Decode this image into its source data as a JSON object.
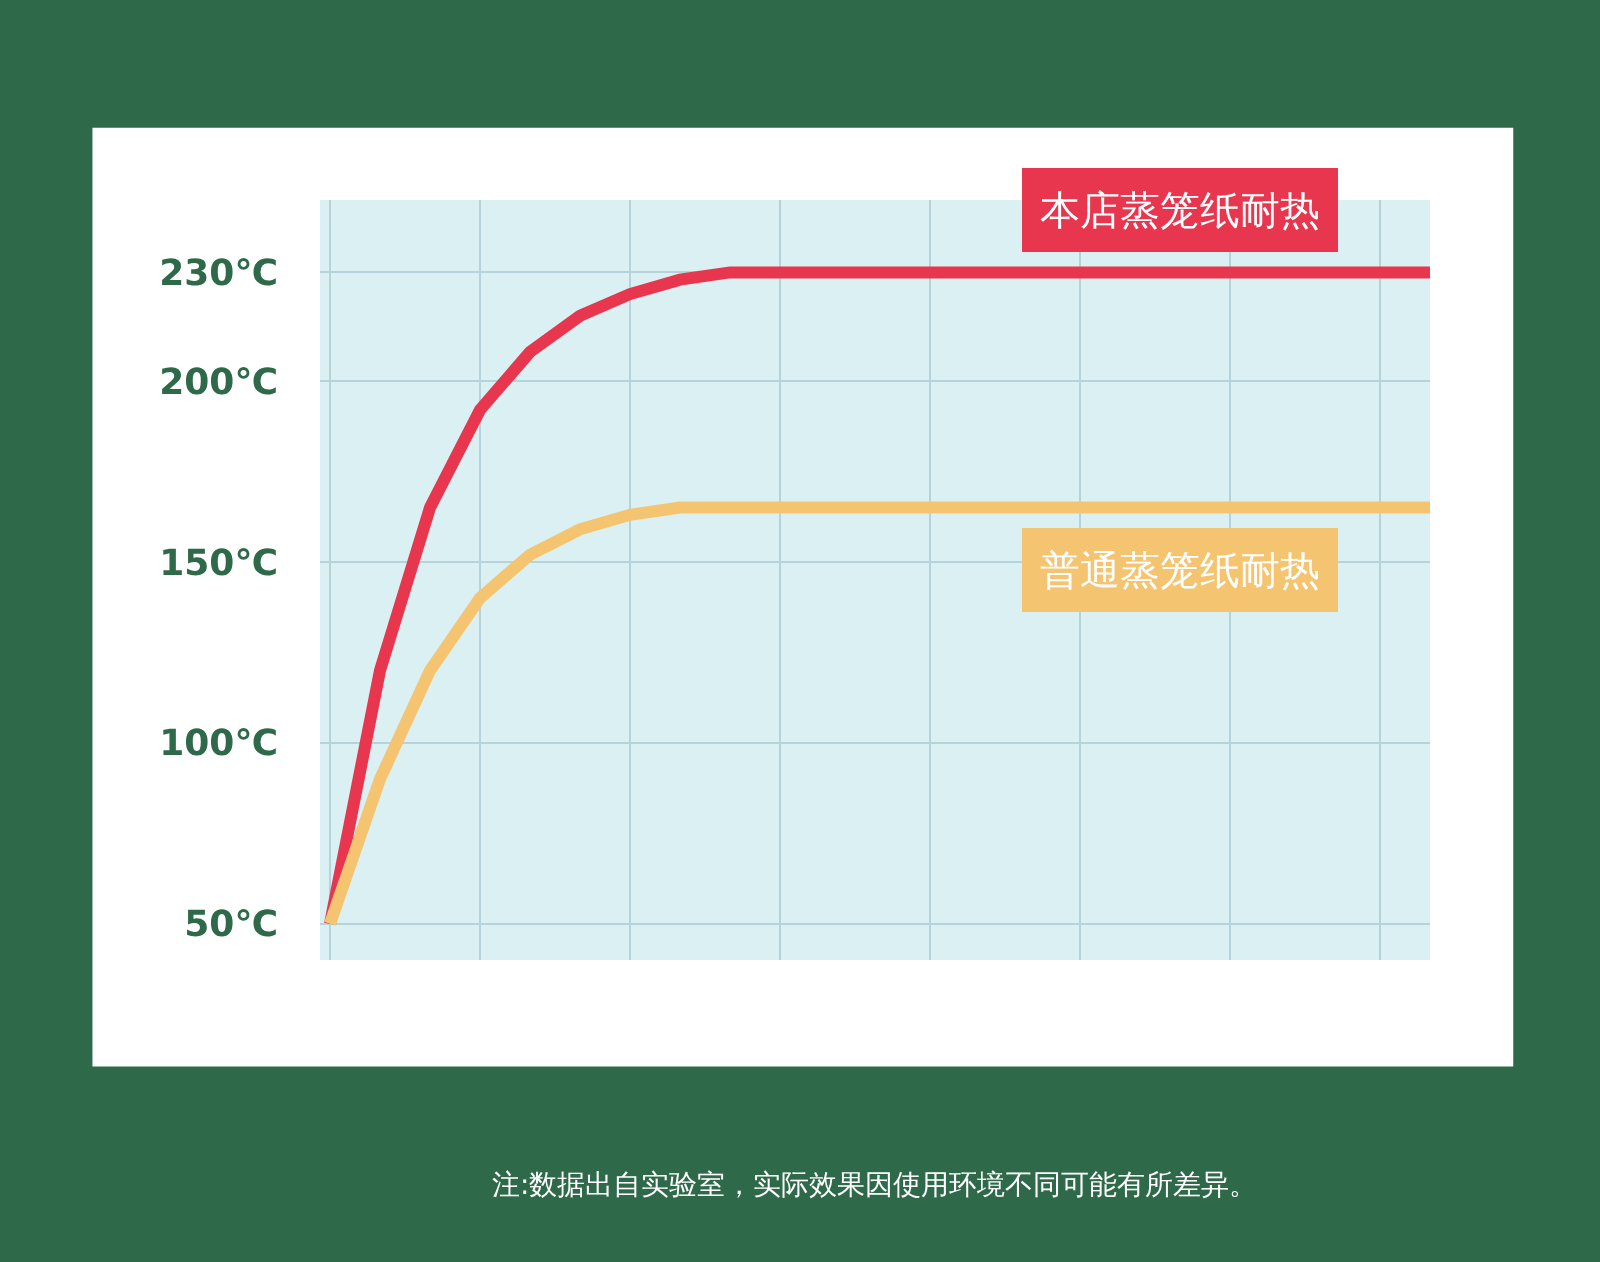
{
  "chart_data": {
    "type": "line",
    "categories": [
      null,
      null,
      null,
      null,
      null,
      null,
      null,
      null,
      null,
      null,
      null,
      null,
      null,
      null,
      null,
      null,
      null,
      null,
      null,
      null,
      null,
      null,
      null
    ],
    "series": [
      {
        "name": "本店蒸笼纸耐热",
        "color": "#e8364e",
        "values": [
          50,
          120,
          165,
          192,
          208,
          218,
          224,
          228,
          230,
          230,
          230,
          230,
          230,
          230,
          230,
          230,
          230,
          230,
          230,
          230,
          230,
          230,
          230
        ]
      },
      {
        "name": "普通蒸笼纸耐热",
        "color": "#f5c470",
        "values": [
          50,
          90,
          120,
          140,
          152,
          159,
          163,
          165,
          165,
          165,
          165,
          165,
          165,
          165,
          165,
          165,
          165,
          165,
          165,
          165,
          165,
          165,
          165
        ]
      }
    ],
    "ylim": [
      40,
      250
    ],
    "yticks": [
      {
        "value": 50,
        "label": "50℃"
      },
      {
        "value": 100,
        "label": "100℃"
      },
      {
        "value": 150,
        "label": "150℃"
      },
      {
        "value": 200,
        "label": "200℃"
      },
      {
        "value": 230,
        "label": "230℃"
      }
    ],
    "grid": true,
    "legend": false,
    "marker": "none",
    "line_style": "solid",
    "tick_labels": "y",
    "annotations": [
      "注:数据出自实验室，实际效果因使用环境不同可能有所差异。"
    ]
  }
}
